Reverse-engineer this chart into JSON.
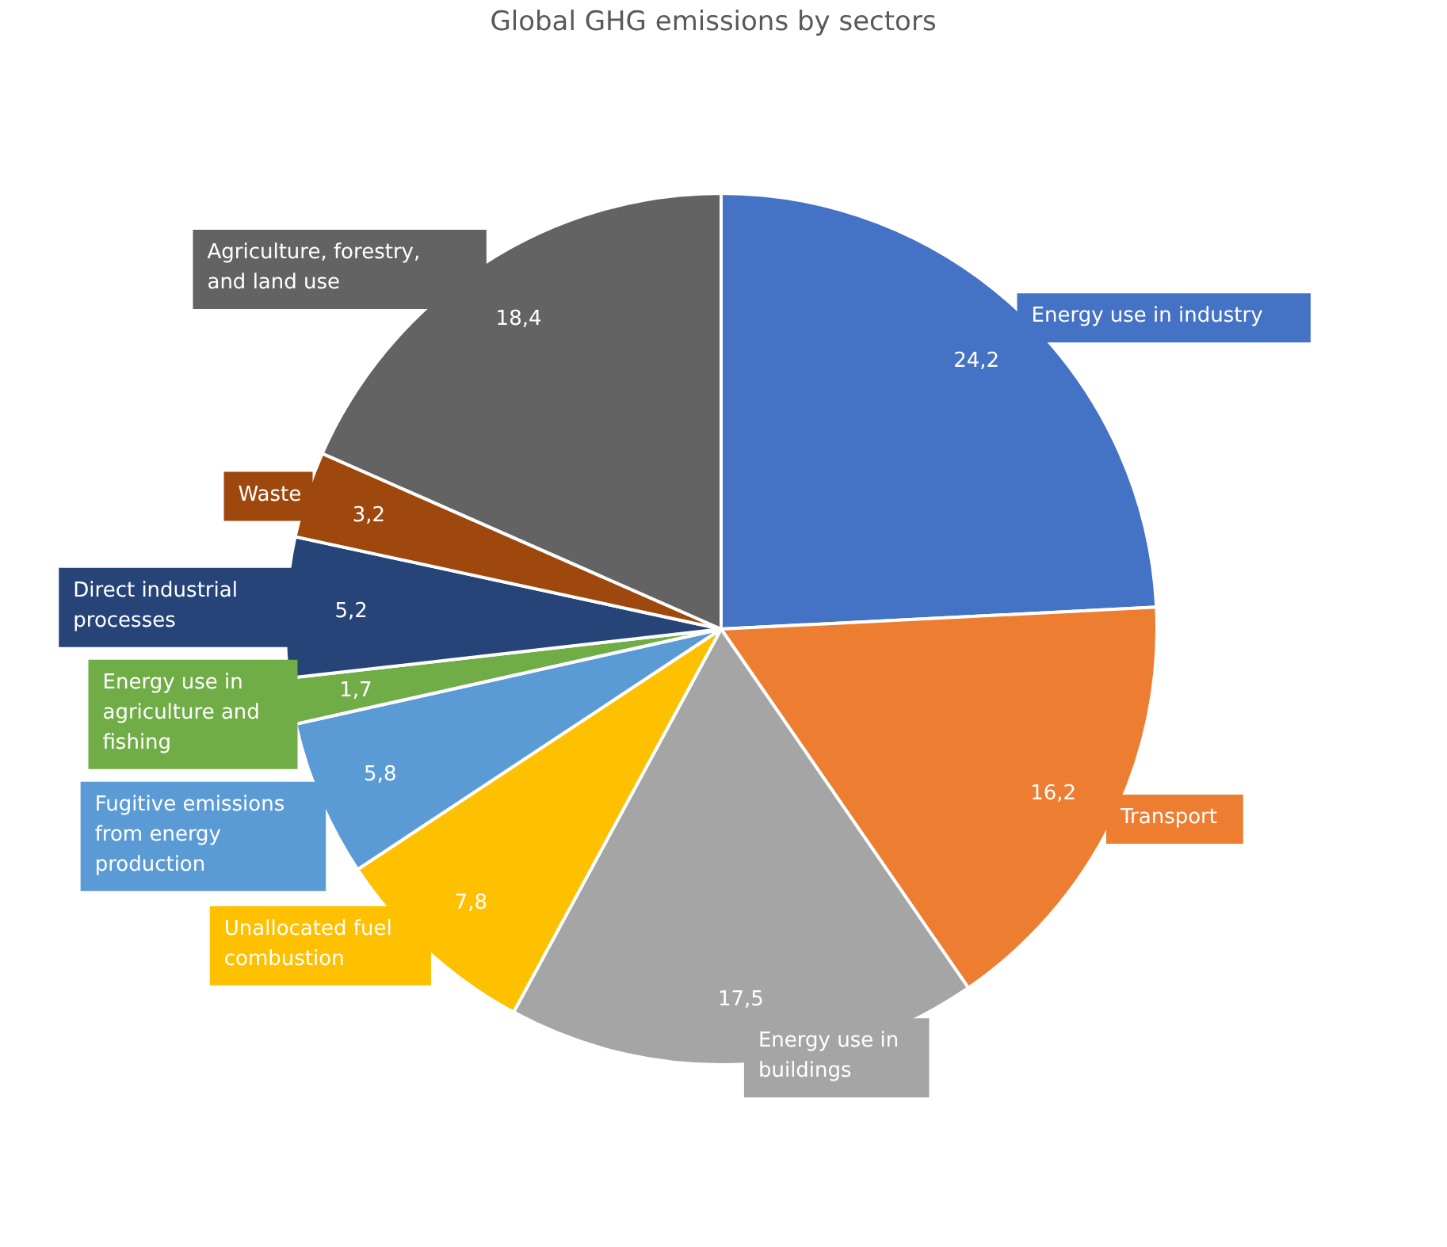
{
  "chart_data": {
    "type": "pie",
    "title": "Global GHG emissions by sectors",
    "categories": [
      "Energy use in industry",
      "Transport",
      "Energy use in buildings",
      "Unallocated fuel combustion",
      "Fugitive emissions from energy production",
      "Energy use in agriculture and fishing",
      "Direct industrial processes",
      "Waste",
      "Agriculture, forestry, and land use"
    ],
    "values": [
      24.2,
      16.2,
      17.5,
      7.8,
      5.8,
      1.7,
      5.2,
      3.2,
      18.4
    ],
    "value_labels": [
      "24,2",
      "16,2",
      "17,5",
      "7,8",
      "5,8",
      "1,7",
      "5,2",
      "3,2",
      "18,4"
    ],
    "colors": [
      "#4472c4",
      "#ed7d31",
      "#a5a5a5",
      "#ffc000",
      "#5b9bd5",
      "#70ad47",
      "#264478",
      "#9e480e",
      "#636363"
    ]
  }
}
